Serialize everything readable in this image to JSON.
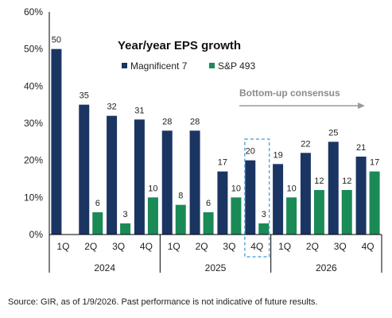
{
  "chart_data": {
    "type": "bar",
    "title": "Year/year EPS growth",
    "y_axis": {
      "min": 0,
      "max": 60,
      "step": 10,
      "format": "percent"
    },
    "grid": false,
    "legend_position": "top-center",
    "quarters": [
      "1Q",
      "2Q",
      "3Q",
      "4Q",
      "1Q",
      "2Q",
      "3Q",
      "4Q",
      "1Q",
      "2Q",
      "3Q",
      "4Q"
    ],
    "years": [
      "2024",
      "2025",
      "2026"
    ],
    "series": [
      {
        "name": "Magnificent 7",
        "color": "#1b3563",
        "values": [
          50,
          35,
          32,
          31,
          28,
          28,
          17,
          20,
          19,
          22,
          25,
          21
        ]
      },
      {
        "name": "S&P 493",
        "color": "#1a8a57",
        "values": [
          null,
          6,
          3,
          10,
          8,
          6,
          10,
          3,
          10,
          12,
          12,
          17
        ]
      }
    ],
    "annotation": "Bottom-up consensus",
    "highlight_index": 7
  },
  "source_note": "Source: GIR, as of 1/9/2026. Past performance is not indicative of future results."
}
